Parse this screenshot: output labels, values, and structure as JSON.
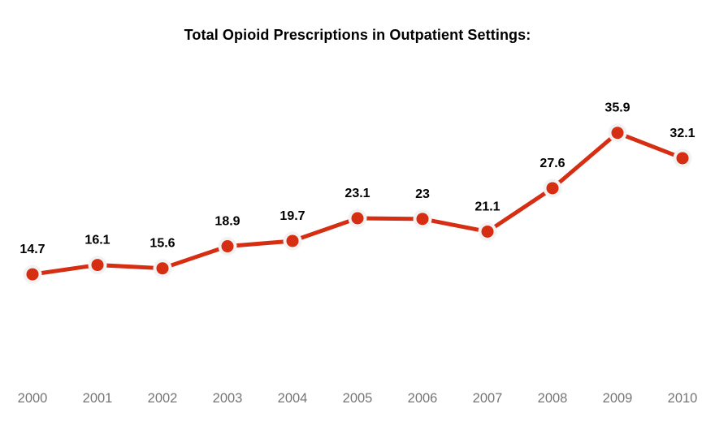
{
  "chart_data": {
    "type": "line",
    "title": "Total Opioid Prescriptions in Outpatient Settings:",
    "categories": [
      "2000",
      "2001",
      "2002",
      "2003",
      "2004",
      "2005",
      "2006",
      "2007",
      "2008",
      "2009",
      "2010"
    ],
    "values": [
      14.7,
      16.1,
      15.6,
      18.9,
      19.7,
      23.1,
      23,
      21.1,
      27.6,
      35.9,
      32.1
    ],
    "xlabel": "",
    "ylabel": "",
    "ylim": [
      0,
      40
    ],
    "grid": false,
    "legend": "none",
    "point_labels_visible": true,
    "colors": {
      "line": "#d62e12",
      "marker": "#d62e12",
      "marker_halo": "#f2f2f2",
      "value_label": "#000000",
      "axis_label": "#757575",
      "background": "#ffffff"
    }
  }
}
